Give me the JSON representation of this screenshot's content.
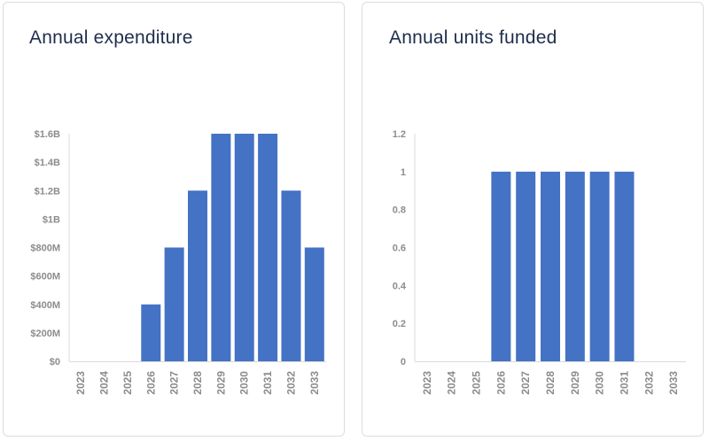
{
  "colors": {
    "bar": "#4472c4",
    "axis": "#d9d9d9",
    "title": "#1f2d4d",
    "tick": "#8c8c8c"
  },
  "chart_data": [
    {
      "type": "bar",
      "title": "Annual expenditure",
      "categories": [
        "2023",
        "2024",
        "2025",
        "2026",
        "2027",
        "2028",
        "2029",
        "2030",
        "2031",
        "2032",
        "2033"
      ],
      "values": [
        0,
        0,
        0,
        400000000,
        800000000,
        1200000000,
        1600000000,
        1600000000,
        1600000000,
        1200000000,
        800000000
      ],
      "yticks": [
        0,
        200000000,
        400000000,
        600000000,
        800000000,
        1000000000,
        1200000000,
        1400000000,
        1600000000
      ],
      "ytick_labels": [
        "$0",
        "$200M",
        "$400M",
        "$600M",
        "$800M",
        "$1B",
        "$1.2B",
        "$1.4B",
        "$1.6B"
      ],
      "ylim": [
        0,
        1600000000
      ],
      "xlabel": "",
      "ylabel": "",
      "grid": false
    },
    {
      "type": "bar",
      "title": "Annual units funded",
      "categories": [
        "2023",
        "2024",
        "2025",
        "2026",
        "2027",
        "2028",
        "2029",
        "2030",
        "2031",
        "2032",
        "2033"
      ],
      "values": [
        0,
        0,
        0,
        1,
        1,
        1,
        1,
        1,
        1,
        0,
        0
      ],
      "yticks": [
        0,
        0.2,
        0.4,
        0.6,
        0.8,
        1,
        1.2
      ],
      "ytick_labels": [
        "0",
        "0.2",
        "0.4",
        "0.6",
        "0.8",
        "1",
        "1.2"
      ],
      "ylim": [
        0,
        1.2
      ],
      "xlabel": "",
      "ylabel": "",
      "grid": false
    }
  ]
}
